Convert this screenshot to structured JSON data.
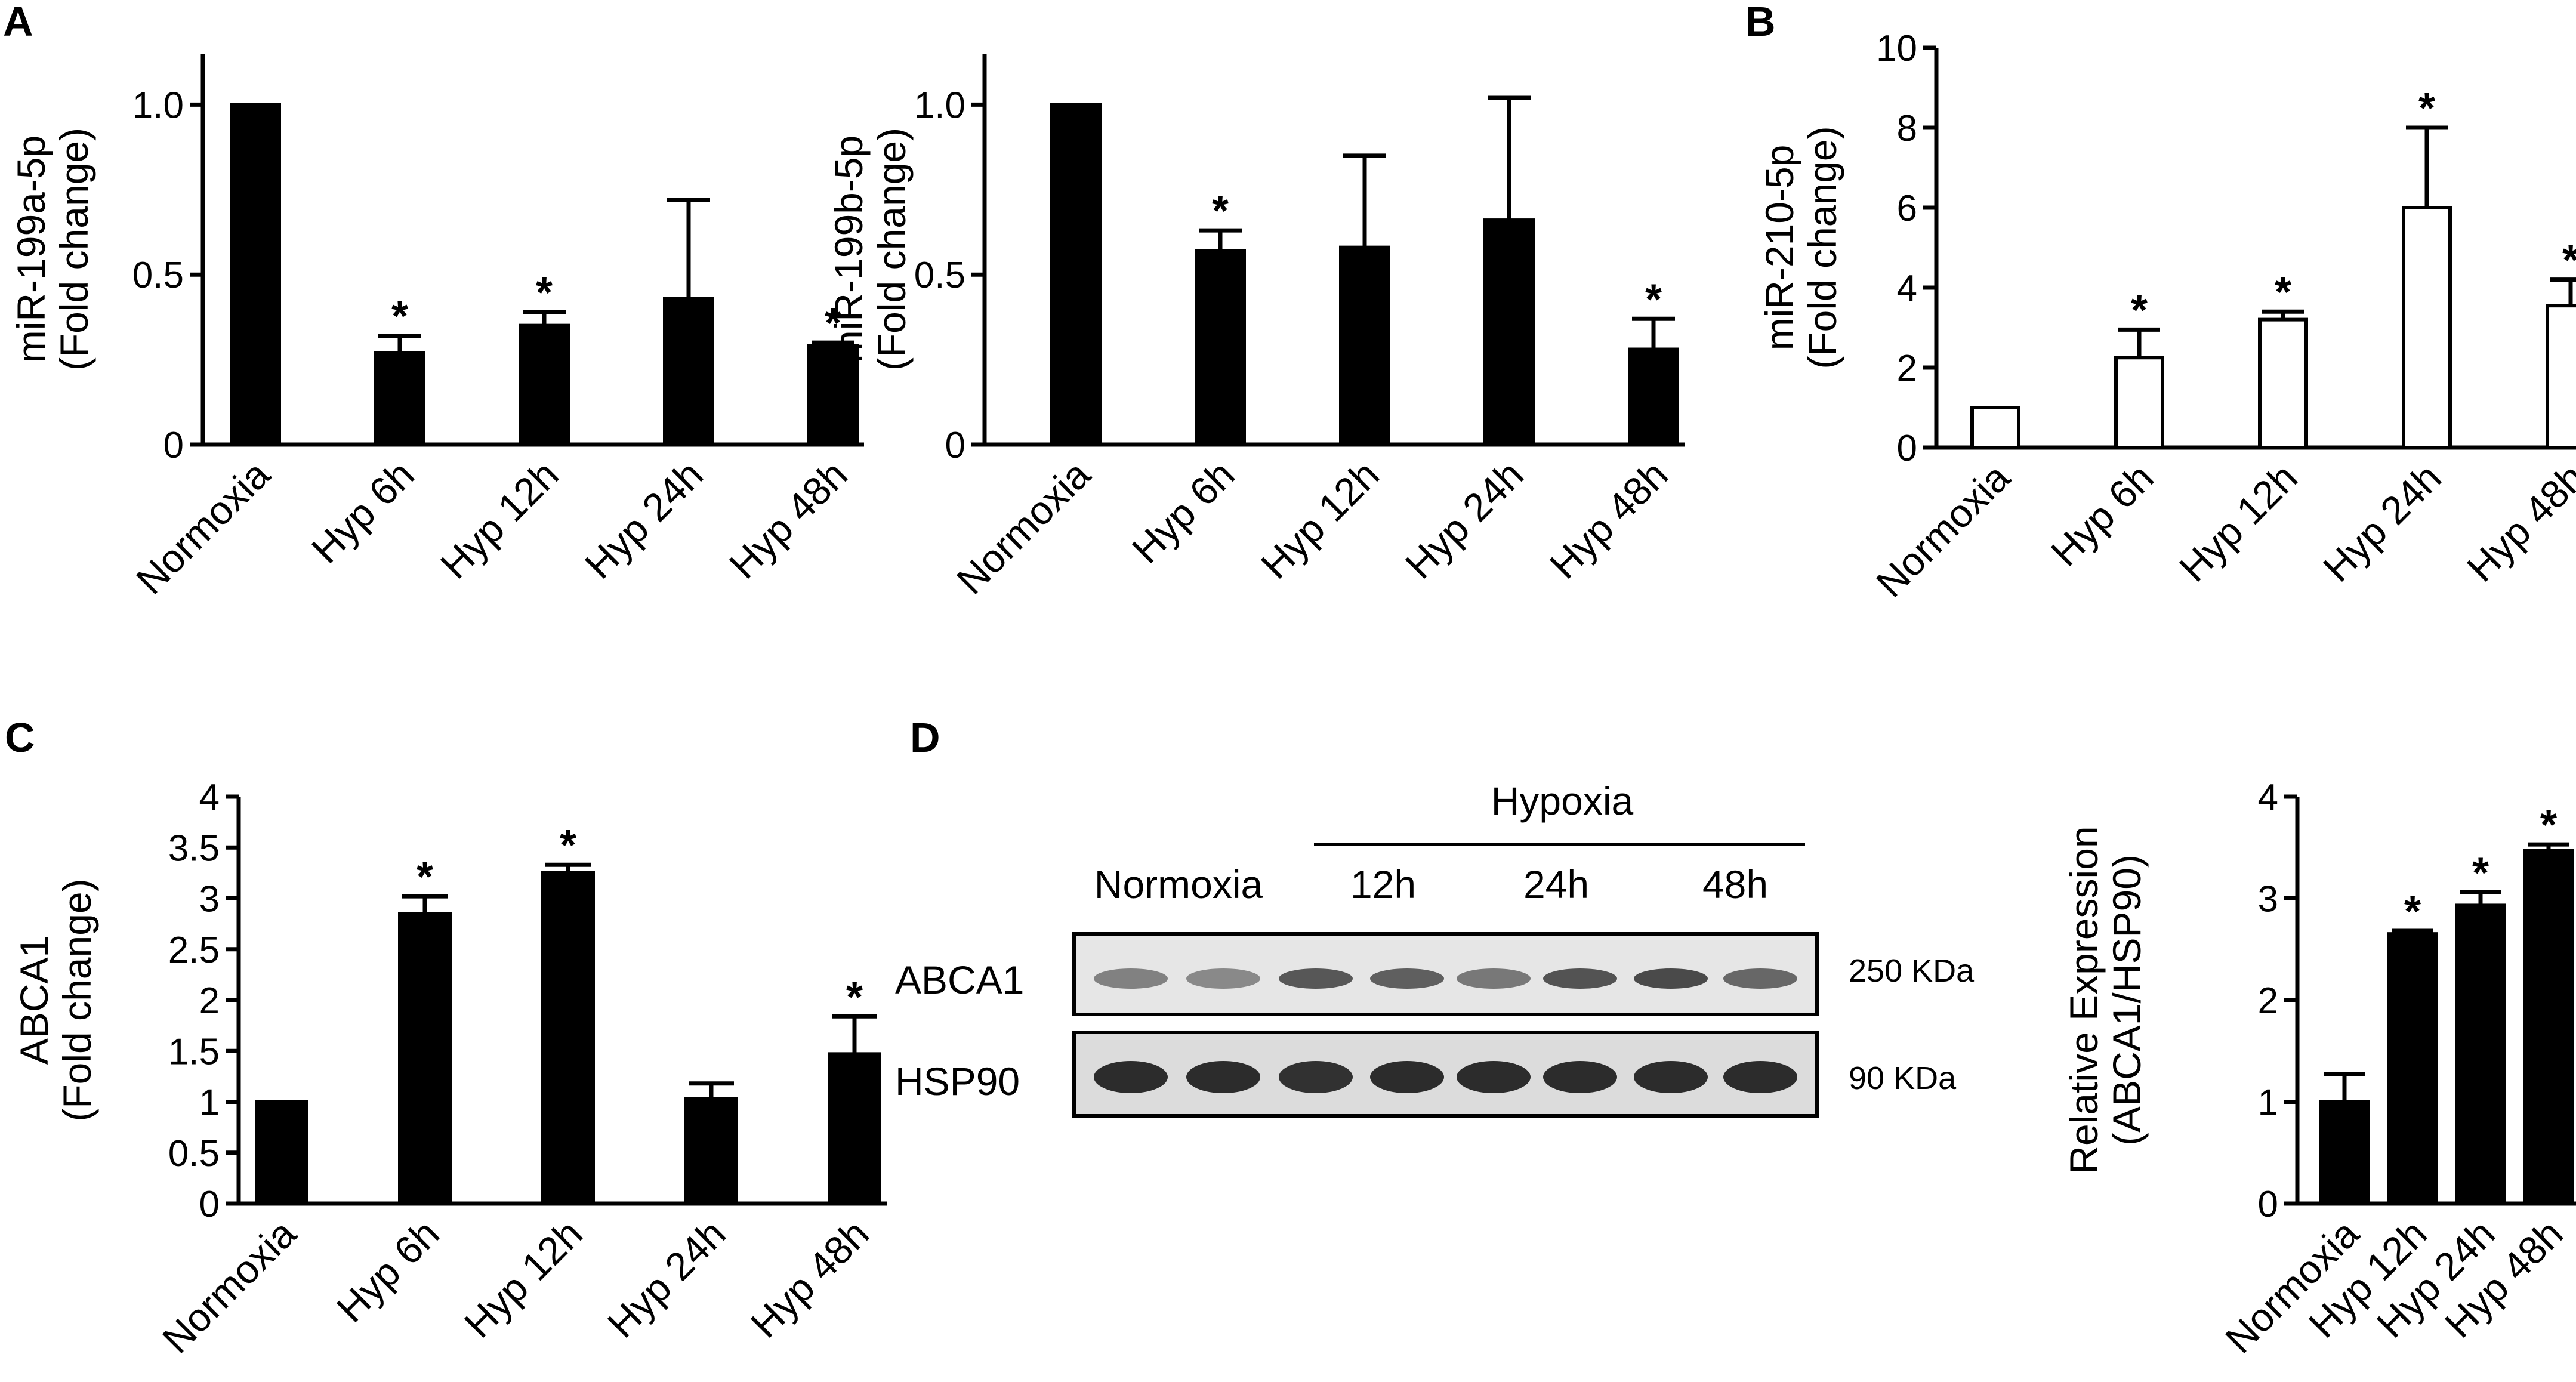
{
  "chart_data": [
    {
      "panel": "A",
      "type": "bar",
      "categories": [
        "Normoxia",
        "Hyp 6h",
        "Hyp 12h",
        "Hyp 24h",
        "Hyp 48h"
      ],
      "values": [
        1.0,
        0.27,
        0.35,
        0.43,
        0.29
      ],
      "errors": [
        0,
        0.05,
        0.04,
        0.29,
        0.01
      ],
      "significant": [
        false,
        true,
        true,
        false,
        true
      ],
      "ylabel": "miR-199a-5p\n(Fold change)",
      "ylim": [
        0,
        1.15
      ],
      "yticks": [
        0,
        0.5,
        1.0
      ],
      "ytick_labels": [
        "0",
        "0.5",
        "1.0"
      ],
      "bar_color": "#000000"
    },
    {
      "panel": "",
      "type": "bar",
      "categories": [
        "Normoxia",
        "Hyp 6h",
        "Hyp 12h",
        "Hyp 24h",
        "Hyp 48h"
      ],
      "values": [
        1.0,
        0.57,
        0.58,
        0.66,
        0.28
      ],
      "errors": [
        0,
        0.06,
        0.27,
        0.36,
        0.09
      ],
      "significant": [
        false,
        true,
        false,
        false,
        true
      ],
      "ylabel": "miR-199b-5p\n(Fold change)",
      "ylim": [
        0,
        1.15
      ],
      "yticks": [
        0,
        0.5,
        1.0
      ],
      "ytick_labels": [
        "0",
        "0.5",
        "1.0"
      ],
      "bar_color": "#000000"
    },
    {
      "panel": "B",
      "type": "bar",
      "categories": [
        "Normoxia",
        "Hyp 6h",
        "Hyp 12h",
        "Hyp 24h",
        "Hyp 48h"
      ],
      "values": [
        1.0,
        2.25,
        3.2,
        6.0,
        3.55
      ],
      "errors": [
        0,
        0.7,
        0.2,
        2.0,
        0.65
      ],
      "significant": [
        false,
        true,
        true,
        true,
        true
      ],
      "ylabel": "miR-210-5p\n(Fold change)",
      "ylim": [
        0,
        10
      ],
      "yticks": [
        0,
        2,
        4,
        6,
        8,
        10
      ],
      "ytick_labels": [
        "0",
        "2",
        "4",
        "6",
        "8",
        "10"
      ],
      "bar_color": "#ffffff"
    },
    {
      "panel": "C",
      "type": "bar",
      "categories": [
        "Normoxia",
        "Hyp 6h",
        "Hyp 12h",
        "Hyp 24h",
        "Hyp 48h"
      ],
      "values": [
        1.0,
        2.85,
        3.25,
        1.03,
        1.47
      ],
      "errors": [
        0,
        0.17,
        0.08,
        0.15,
        0.37
      ],
      "significant": [
        false,
        true,
        true,
        false,
        true
      ],
      "ylabel": "ABCA1\n(Fold change)",
      "ylim": [
        0,
        4
      ],
      "yticks": [
        0,
        0.5,
        1,
        1.5,
        2,
        2.5,
        3,
        3.5,
        4
      ],
      "ytick_labels": [
        "0",
        "0.5",
        "1",
        "1.5",
        "2",
        "2.5",
        "3",
        "3.5",
        "4"
      ],
      "bar_color": "#000000"
    },
    {
      "panel": "D",
      "type": "bar",
      "categories": [
        "Normoxia",
        "Hyp 12h",
        "Hyp 24h",
        "Hyp 48h"
      ],
      "values": [
        1.0,
        2.65,
        2.93,
        3.47
      ],
      "errors": [
        0.27,
        0.03,
        0.13,
        0.06
      ],
      "significant": [
        false,
        true,
        true,
        true
      ],
      "ylabel": "Relative Expression\n(ABCA1/HSP90)",
      "ylim": [
        0,
        4
      ],
      "yticks": [
        0,
        1,
        2,
        3,
        4
      ],
      "ytick_labels": [
        "0",
        "1",
        "2",
        "3",
        "4"
      ],
      "bar_color": "#000000"
    }
  ],
  "western_blot": {
    "group_label": "Hypoxia",
    "lane_labels": [
      "Normoxia",
      "12h",
      "24h",
      "48h"
    ],
    "rows": [
      {
        "protein": "ABCA1",
        "size": "250 KDa",
        "intensity": [
          0.45,
          0.4,
          0.7,
          0.65,
          0.5,
          0.72,
          0.78,
          0.6
        ]
      },
      {
        "protein": "HSP90",
        "size": "90 KDa",
        "intensity": [
          0.95,
          0.95,
          0.92,
          0.95,
          0.95,
          0.95,
          0.95,
          0.95
        ]
      }
    ]
  }
}
